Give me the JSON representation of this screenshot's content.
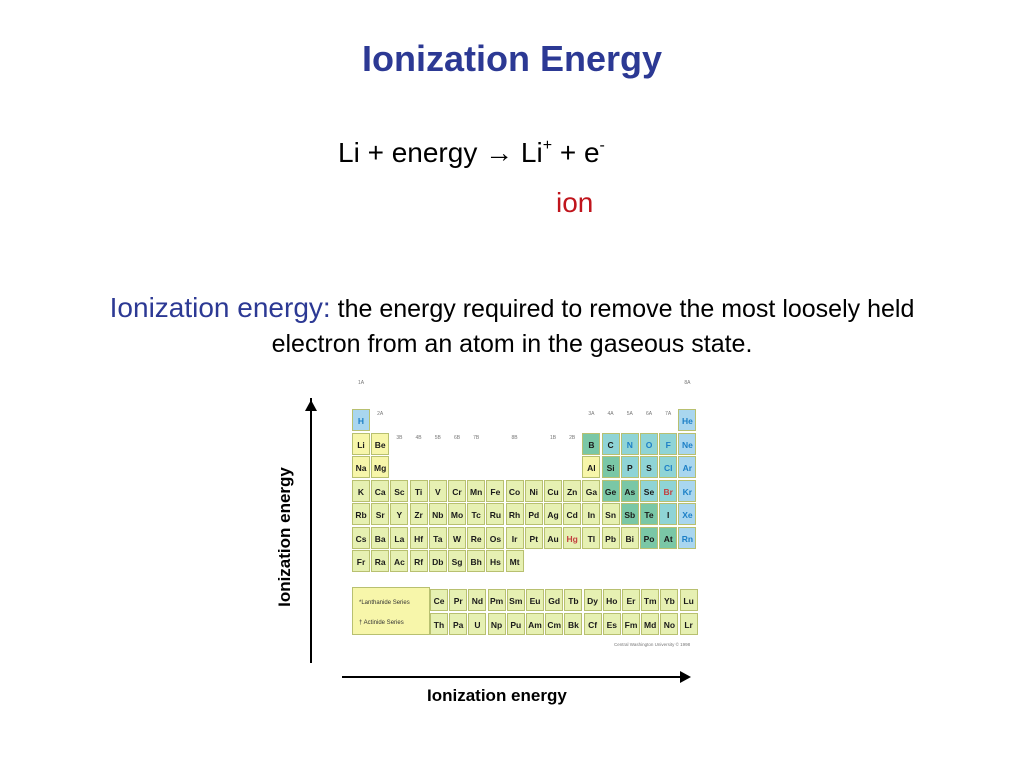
{
  "slide": {
    "title": "Ionization Energy",
    "equation": {
      "reactant": "Li",
      "plus1": "+",
      "energy": "energy",
      "arrow": "→",
      "product": "Li",
      "product_charge": "+",
      "plus2": "+",
      "electron": "e",
      "electron_charge": "-"
    },
    "ion_label": "ion",
    "definition": {
      "term": "Ionization energy:",
      "text": "the energy required to remove the most loosely held electron from an atom in the gaseous state."
    },
    "axes": {
      "y_label": "Ionization energy",
      "x_label": "Ionization energy"
    }
  },
  "periodic_table": {
    "rows": [
      [
        "H",
        "",
        "",
        "",
        "",
        "",
        "",
        "",
        "",
        "",
        "",
        "",
        "",
        "",
        "",
        "",
        "",
        "He"
      ],
      [
        "Li",
        "Be",
        "",
        "",
        "",
        "",
        "",
        "",
        "",
        "",
        "",
        "",
        "B",
        "C",
        "N",
        "O",
        "F",
        "Ne"
      ],
      [
        "Na",
        "Mg",
        "",
        "",
        "",
        "",
        "",
        "",
        "",
        "",
        "",
        "",
        "Al",
        "Si",
        "P",
        "S",
        "Cl",
        "Ar"
      ],
      [
        "K",
        "Ca",
        "Sc",
        "Ti",
        "V",
        "Cr",
        "Mn",
        "Fe",
        "Co",
        "Ni",
        "Cu",
        "Zn",
        "Ga",
        "Ge",
        "As",
        "Se",
        "Br",
        "Kr"
      ],
      [
        "Rb",
        "Sr",
        "Y",
        "Zr",
        "Nb",
        "Mo",
        "Tc",
        "Ru",
        "Rh",
        "Pd",
        "Ag",
        "Cd",
        "In",
        "Sn",
        "Sb",
        "Te",
        "I",
        "Xe"
      ],
      [
        "Cs",
        "Ba",
        "La",
        "Hf",
        "Ta",
        "W",
        "Re",
        "Os",
        "Ir",
        "Pt",
        "Au",
        "Hg",
        "Tl",
        "Pb",
        "Bi",
        "Po",
        "At",
        "Rn"
      ],
      [
        "Fr",
        "Ra",
        "Ac",
        "Rf",
        "Db",
        "Sg",
        "Bh",
        "Hs",
        "Mt",
        "",
        "",
        "",
        "",
        "",
        "",
        "",
        "",
        ""
      ]
    ],
    "lanthanides": [
      "Ce",
      "Pr",
      "Nd",
      "Pm",
      "Sm",
      "Eu",
      "Gd",
      "Tb",
      "Dy",
      "Ho",
      "Er",
      "Tm",
      "Yb",
      "Lu"
    ],
    "actinides": [
      "Th",
      "Pa",
      "U",
      "Np",
      "Pu",
      "Am",
      "Cm",
      "Bk",
      "Cf",
      "Es",
      "Fm",
      "Md",
      "No",
      "Lr"
    ],
    "lanthanide_label": "*Lanthanide Series",
    "actinide_label": "† Actinide Series",
    "group_labels": [
      {
        "col": 0,
        "row": -1,
        "text": "1A"
      },
      {
        "col": 1,
        "row": 0,
        "text": "2A"
      },
      {
        "col": 2,
        "row": 1,
        "text": "3B"
      },
      {
        "col": 3,
        "row": 1,
        "text": "4B"
      },
      {
        "col": 4,
        "row": 1,
        "text": "5B"
      },
      {
        "col": 5,
        "row": 1,
        "text": "6B"
      },
      {
        "col": 6,
        "row": 1,
        "text": "7B"
      },
      {
        "col": 8,
        "row": 1,
        "text": "8B"
      },
      {
        "col": 10,
        "row": 1,
        "text": "1B"
      },
      {
        "col": 11,
        "row": 1,
        "text": "2B"
      },
      {
        "col": 12,
        "row": 0,
        "text": "3A"
      },
      {
        "col": 13,
        "row": 0,
        "text": "4A"
      },
      {
        "col": 14,
        "row": 0,
        "text": "5A"
      },
      {
        "col": 15,
        "row": 0,
        "text": "6A"
      },
      {
        "col": 16,
        "row": 0,
        "text": "7A"
      },
      {
        "col": 17,
        "row": -1,
        "text": "8A"
      }
    ],
    "credit": "Central Washington University © 1998",
    "colors": {
      "metal": "#f7f6aa",
      "transition": "#e6f0b2",
      "metalloid": "#7ac7a6",
      "nonmetal": "#8fd4d6",
      "noble": "#a9d6ef",
      "hydrogen": "#a9d6ef"
    },
    "blue_symbols": [
      "H",
      "He",
      "N",
      "O",
      "F",
      "Ne",
      "Cl",
      "Ar",
      "Kr",
      "Xe",
      "Rn"
    ],
    "red_symbols": [
      "Br",
      "Hg"
    ],
    "metalloids": [
      "B",
      "Si",
      "Ge",
      "As",
      "Sb",
      "Te",
      "Po",
      "At"
    ],
    "nonmetals": [
      "C",
      "N",
      "O",
      "F",
      "P",
      "S",
      "Cl",
      "Se",
      "Br",
      "I"
    ],
    "nobles": [
      "He",
      "Ne",
      "Ar",
      "Kr",
      "Xe",
      "Rn"
    ]
  }
}
